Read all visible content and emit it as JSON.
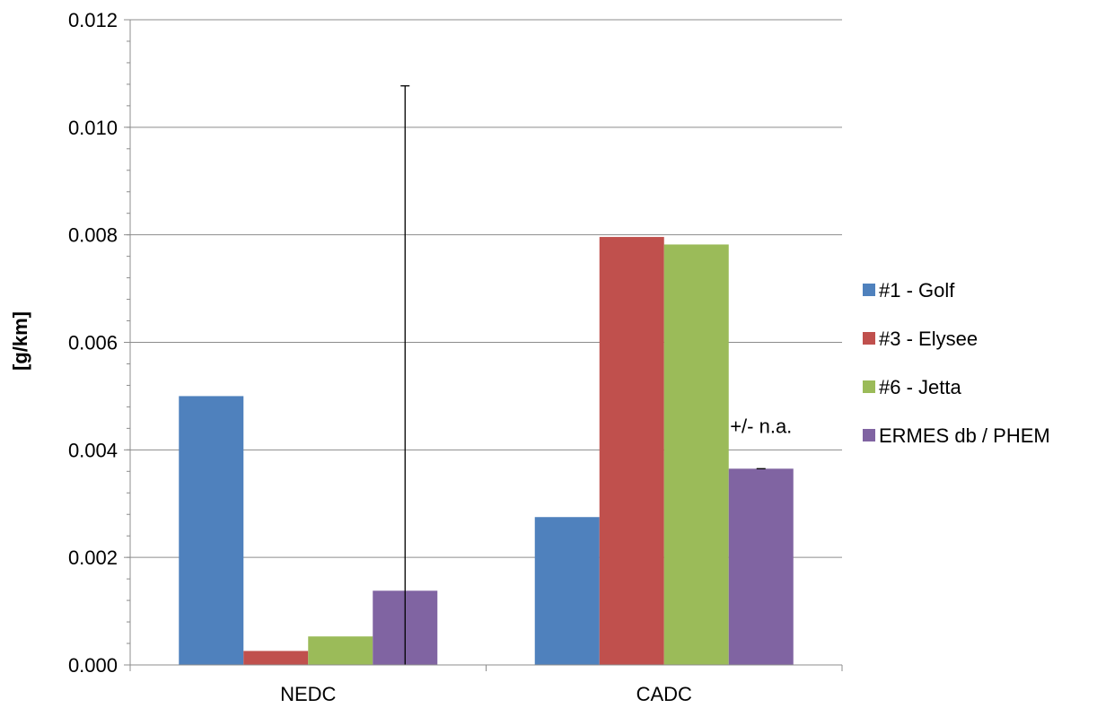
{
  "chart_data": {
    "type": "bar",
    "categories": [
      "NEDC",
      "CADC"
    ],
    "series": [
      {
        "name": "#1 - Golf",
        "values": [
          0.005,
          0.00275
        ],
        "color": "#4f81bd"
      },
      {
        "name": "#3 - Elysee",
        "values": [
          0.00026,
          0.00796
        ],
        "color": "#c0504d"
      },
      {
        "name": "#6 - Jetta",
        "values": [
          0.00053,
          0.00782
        ],
        "color": "#9bbb59"
      },
      {
        "name": "ERMES db / PHEM",
        "values": [
          0.00138,
          0.00365
        ],
        "color": "#8064a2"
      }
    ],
    "error_bars": [
      {
        "series": "ERMES db / PHEM",
        "category": "NEDC",
        "low": 0.0,
        "high": 0.01077
      }
    ],
    "annotations": [
      {
        "text": "+/- n.a.",
        "series": "ERMES db / PHEM",
        "category": "CADC"
      }
    ],
    "ylabel": "[g/km]",
    "xlabel": "",
    "ylim": [
      0,
      0.012
    ],
    "yticks": [
      0.0,
      0.002,
      0.004,
      0.006,
      0.008,
      0.01,
      0.012
    ],
    "ytick_labels": [
      "0.000",
      "0.002",
      "0.004",
      "0.006",
      "0.008",
      "0.010",
      "0.012"
    ],
    "grid": true,
    "legend": "right"
  }
}
